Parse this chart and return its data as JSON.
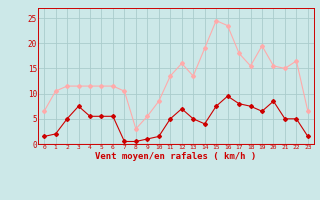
{
  "x": [
    0,
    1,
    2,
    3,
    4,
    5,
    6,
    7,
    8,
    9,
    10,
    11,
    12,
    13,
    14,
    15,
    16,
    17,
    18,
    19,
    20,
    21,
    22,
    23
  ],
  "wind_avg": [
    1.5,
    2.0,
    5.0,
    7.5,
    5.5,
    5.5,
    5.5,
    0.5,
    0.5,
    1.0,
    1.5,
    5.0,
    7.0,
    5.0,
    4.0,
    7.5,
    9.5,
    8.0,
    7.5,
    6.5,
    8.5,
    5.0,
    5.0,
    1.5
  ],
  "wind_gust": [
    6.5,
    10.5,
    11.5,
    11.5,
    11.5,
    11.5,
    11.5,
    10.5,
    3.0,
    5.5,
    8.5,
    13.5,
    16.0,
    13.5,
    19.0,
    24.5,
    23.5,
    18.0,
    15.5,
    19.5,
    15.5,
    15.0,
    16.5,
    6.5
  ],
  "avg_color": "#cc0000",
  "gust_color": "#ffaaaa",
  "bg_color": "#cce8e8",
  "grid_color": "#aacccc",
  "xlabel": "Vent moyen/en rafales ( km/h )",
  "xlim": [
    -0.5,
    23.5
  ],
  "ylim": [
    0,
    27
  ],
  "yticks": [
    0,
    5,
    10,
    15,
    20,
    25
  ],
  "xticks": [
    0,
    1,
    2,
    3,
    4,
    5,
    6,
    7,
    8,
    9,
    10,
    11,
    12,
    13,
    14,
    15,
    16,
    17,
    18,
    19,
    20,
    21,
    22,
    23
  ]
}
